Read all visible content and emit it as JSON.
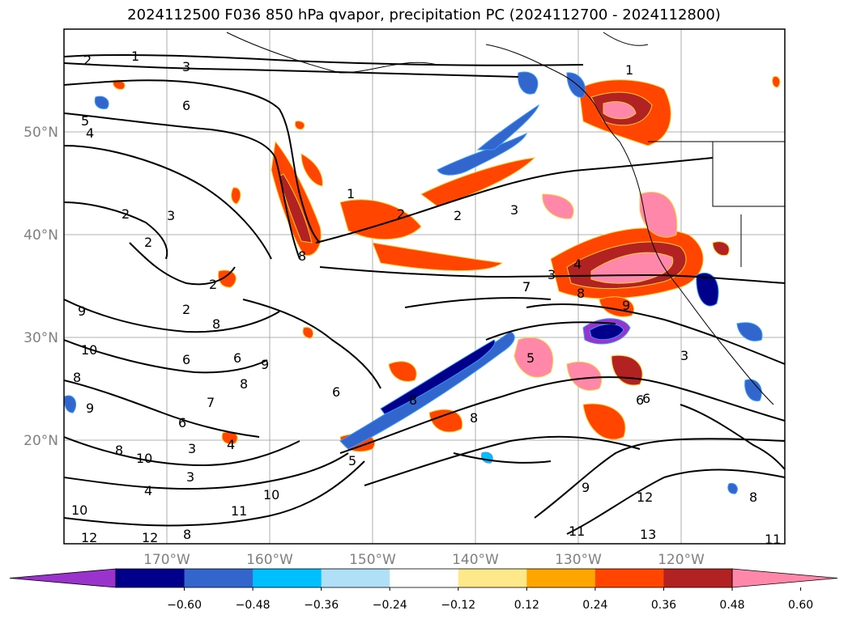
{
  "title": "2024112500 F036 850 hPa qvapor, precipitation PC (2024112700 - 2024112800)",
  "lat_ticks": [
    "50°N",
    "40°N",
    "30°N",
    "20°N"
  ],
  "lon_ticks": [
    "170°W",
    "160°W",
    "150°W",
    "140°W",
    "130°W",
    "120°W"
  ],
  "colorbar": {
    "ticks": [
      "−0.60",
      "−0.48",
      "−0.36",
      "−0.24",
      "−0.12",
      "0.12",
      "0.24",
      "0.36",
      "0.48",
      "0.60"
    ],
    "colors": [
      "#9933cc",
      "#00008b",
      "#3366cc",
      "#00bfff",
      "#b0e0f8",
      "#ffffff",
      "#ffe88a",
      "#ffa500",
      "#ff4500",
      "#b22222",
      "#ff88aa"
    ]
  },
  "contour_labels": [
    "1",
    "2",
    "3",
    "6",
    "5",
    "4",
    "2",
    "3",
    "2",
    "2",
    "2",
    "9",
    "10",
    "8",
    "6",
    "6",
    "7",
    "8",
    "9",
    "9",
    "8",
    "10",
    "6",
    "3",
    "4",
    "10",
    "11",
    "10",
    "12",
    "12",
    "8",
    "1",
    "2",
    "3",
    "2",
    "5",
    "4",
    "6",
    "3",
    "7",
    "8",
    "9",
    "3",
    "3",
    "6",
    "12",
    "9",
    "8",
    "11",
    "13",
    "11",
    "8",
    "1",
    "4",
    "7",
    "8",
    "5",
    "6",
    "8",
    "8"
  ]
}
